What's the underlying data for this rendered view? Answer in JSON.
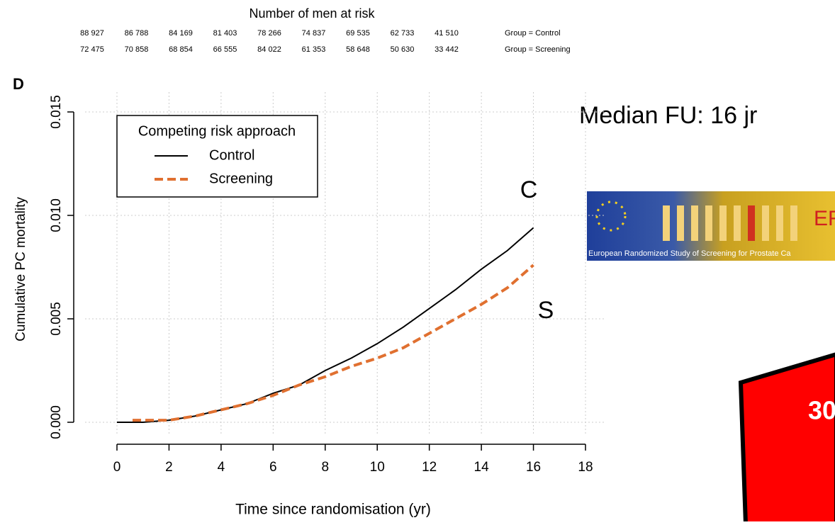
{
  "chart_data": {
    "type": "line",
    "panel_label": "D",
    "xlabel": "Time since randomisation (yr)",
    "ylabel": "Cumulative PC mortality",
    "x": [
      0,
      0.6,
      1,
      2,
      3,
      4,
      5,
      6,
      7,
      8,
      9,
      10,
      11,
      12,
      13,
      14,
      15,
      16
    ],
    "series": [
      {
        "name": "Control",
        "color": "#000000",
        "dash": false,
        "values": [
          0,
          0,
          0,
          0.0001,
          0.0003,
          0.0006,
          0.0009,
          0.0014,
          0.0018,
          0.0025,
          0.0031,
          0.0038,
          0.0046,
          0.0055,
          0.0064,
          0.0074,
          0.0083,
          0.0094
        ]
      },
      {
        "name": "Screening",
        "color": "#e07030",
        "dash": true,
        "values": [
          null,
          0.0001,
          0.0001,
          0.0001,
          0.0003,
          0.0006,
          0.0009,
          0.0013,
          0.0018,
          0.0022,
          0.0027,
          0.0031,
          0.0036,
          0.0043,
          0.005,
          0.0057,
          0.0065,
          0.0076
        ]
      }
    ],
    "xlim": [
      0,
      18
    ],
    "xticks": [
      0,
      2,
      4,
      6,
      8,
      10,
      12,
      14,
      16,
      18
    ],
    "ylim": [
      0,
      0.015
    ],
    "yticks": [
      {
        "value": 0,
        "label": "0.000"
      },
      {
        "value": 0.005,
        "label": "0.005"
      },
      {
        "value": 0.01,
        "label": "0.010"
      },
      {
        "value": 0.015,
        "label": "0.015"
      }
    ],
    "grid": true,
    "legend": {
      "title": "Competing risk approach",
      "position": "top-left"
    },
    "annotations": [
      "C",
      "S"
    ],
    "risk_table": {
      "title": "Number of men at risk",
      "rows": [
        {
          "label": "Group = Control",
          "counts": [
            "88 927",
            "86 788",
            "84 169",
            "81 403",
            "78 266",
            "74 837",
            "69 535",
            "62 733",
            "41 510"
          ]
        },
        {
          "label": "Group = Screening",
          "counts": [
            "72 475",
            "70 858",
            "68 854",
            "66 555",
            "84 022",
            "61 353",
            "58 648",
            "50 630",
            "33 442"
          ]
        }
      ]
    }
  },
  "slide": {
    "note": "Median FU: 16 jr",
    "logo_caption": "European Randomized Study of Screening for Prostate Ca",
    "logo_mark": "ERS",
    "page_number": "30"
  }
}
